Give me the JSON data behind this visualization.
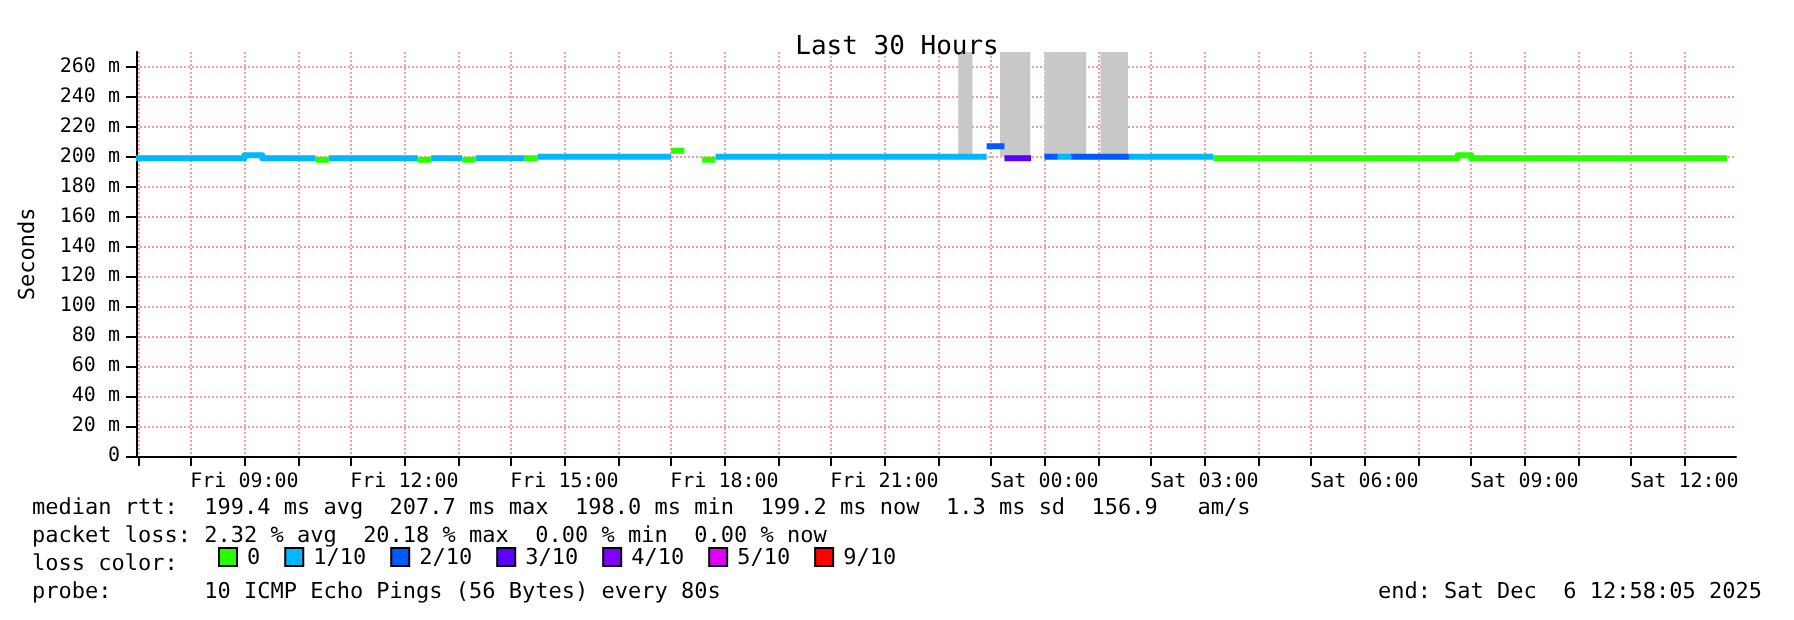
{
  "chart_data": {
    "type": "step",
    "title": "Last 30 Hours",
    "ylabel": "Seconds",
    "legend_title": "loss color:",
    "legend": "bottom left",
    "grid": true,
    "marker": "none",
    "line_style": "solid",
    "xlim": [
      "2025-12-05T06:58",
      "2025-12-06T12:58"
    ],
    "xticks": [
      {
        "value": "2025-12-05T07:00",
        "label": null
      },
      {
        "value": "2025-12-05T08:00",
        "label": null
      },
      {
        "value": "2025-12-05T09:00",
        "label": "Fri 09:00"
      },
      {
        "value": "2025-12-05T10:00",
        "label": null
      },
      {
        "value": "2025-12-05T11:00",
        "label": null
      },
      {
        "value": "2025-12-05T12:00",
        "label": "Fri 12:00"
      },
      {
        "value": "2025-12-05T13:00",
        "label": null
      },
      {
        "value": "2025-12-05T14:00",
        "label": null
      },
      {
        "value": "2025-12-05T15:00",
        "label": "Fri 15:00"
      },
      {
        "value": "2025-12-05T16:00",
        "label": null
      },
      {
        "value": "2025-12-05T17:00",
        "label": null
      },
      {
        "value": "2025-12-05T18:00",
        "label": "Fri 18:00"
      },
      {
        "value": "2025-12-05T19:00",
        "label": null
      },
      {
        "value": "2025-12-05T20:00",
        "label": null
      },
      {
        "value": "2025-12-05T21:00",
        "label": "Fri 21:00"
      },
      {
        "value": "2025-12-05T22:00",
        "label": null
      },
      {
        "value": "2025-12-05T23:00",
        "label": null
      },
      {
        "value": "2025-12-06T00:00",
        "label": "Sat 00:00"
      },
      {
        "value": "2025-12-06T01:00",
        "label": null
      },
      {
        "value": "2025-12-06T02:00",
        "label": null
      },
      {
        "value": "2025-12-06T03:00",
        "label": "Sat 03:00"
      },
      {
        "value": "2025-12-06T04:00",
        "label": null
      },
      {
        "value": "2025-12-06T05:00",
        "label": null
      },
      {
        "value": "2025-12-06T06:00",
        "label": "Sat 06:00"
      },
      {
        "value": "2025-12-06T07:00",
        "label": null
      },
      {
        "value": "2025-12-06T08:00",
        "label": null
      },
      {
        "value": "2025-12-06T09:00",
        "label": "Sat 09:00"
      },
      {
        "value": "2025-12-06T10:00",
        "label": null
      },
      {
        "value": "2025-12-06T11:00",
        "label": null
      },
      {
        "value": "2025-12-06T12:00",
        "label": "Sat 12:00"
      }
    ],
    "ylim": [
      0,
      270
    ],
    "yticks": [
      0,
      {
        "value": 20,
        "label": "20 m"
      },
      {
        "value": 40,
        "label": "40 m"
      },
      {
        "value": 60,
        "label": "60 m"
      },
      {
        "value": 80,
        "label": "80 m"
      },
      {
        "value": 100,
        "label": "100 m"
      },
      {
        "value": 120,
        "label": "120 m"
      },
      {
        "value": 140,
        "label": "140 m"
      },
      {
        "value": 160,
        "label": "160 m"
      },
      {
        "value": 180,
        "label": "180 m"
      },
      {
        "value": 200,
        "label": "200 m"
      },
      {
        "value": 220,
        "label": "220 m"
      },
      {
        "value": 240,
        "label": "240 m"
      },
      {
        "value": 260,
        "label": "260 m"
      }
    ],
    "series": [
      {
        "type": "area",
        "color": "#c8c8c8",
        "x": [
          "2025-12-05T22:23",
          "2025-12-05T22:39",
          "2025-12-05T22:45",
          "2025-12-05T23:10",
          "2025-12-05T23:44",
          "2025-12-05T23:50",
          "2025-12-06T00:00",
          "2025-12-06T00:47",
          "2025-12-06T00:55",
          "2025-12-06T01:03",
          "2025-12-06T01:34"
        ],
        "lower": [
          200,
          200,
          null,
          200,
          200,
          null,
          200,
          200,
          null,
          200,
          200
        ],
        "upper": [
          270,
          270,
          null,
          270,
          270,
          null,
          270,
          270,
          null,
          270,
          270
        ],
        "values": [
          null,
          null,
          null,
          null,
          null,
          null,
          null,
          null,
          null,
          null,
          null
        ]
      },
      {
        "name": "0",
        "color": "#26ff00",
        "x": [
          "2025-12-05T10:20",
          "2025-12-05T10:35",
          "2025-12-05T10:40",
          "2025-12-05T12:15",
          "2025-12-05T12:30",
          "2025-12-05T12:35",
          "2025-12-05T13:05",
          "2025-12-05T13:20",
          "2025-12-05T13:25",
          "2025-12-05T14:15",
          "2025-12-05T14:30",
          "2025-12-05T14:35",
          "2025-12-05T17:00",
          "2025-12-05T17:15",
          "2025-12-05T17:20",
          "2025-12-05T17:35",
          "2025-12-05T17:50",
          "2025-12-05T17:55",
          "2025-12-06T03:10",
          "2025-12-06T07:45",
          "2025-12-06T08:00",
          "2025-12-06T12:48"
        ],
        "values": [
          198,
          198,
          null,
          198,
          198,
          null,
          198,
          198,
          null,
          199,
          199,
          null,
          204,
          204,
          null,
          198,
          198,
          null,
          199,
          201,
          199,
          199
        ]
      },
      {
        "name": "1/10",
        "color": "#00b8ff",
        "x": [
          "2025-12-05T06:58",
          "2025-12-05T09:00",
          "2025-12-05T09:20",
          "2025-12-05T10:20",
          "2025-12-05T10:25",
          "2025-12-05T10:35",
          "2025-12-05T12:15",
          "2025-12-05T12:20",
          "2025-12-05T12:30",
          "2025-12-05T13:05",
          "2025-12-05T13:10",
          "2025-12-05T13:20",
          "2025-12-05T14:15",
          "2025-12-05T14:20",
          "2025-12-05T14:30",
          "2025-12-05T17:00",
          "2025-12-05T17:05",
          "2025-12-05T17:50",
          "2025-12-05T22:55",
          "2025-12-05T23:00",
          "2025-12-06T00:15",
          "2025-12-06T00:30",
          "2025-12-06T00:35",
          "2025-12-06T01:35",
          "2025-12-06T03:10"
        ],
        "values": [
          199,
          201,
          199,
          199,
          null,
          199,
          199,
          null,
          199,
          199,
          null,
          199,
          199,
          null,
          200,
          200,
          null,
          200,
          200,
          null,
          200,
          200,
          null,
          200,
          200
        ]
      },
      {
        "name": "2/10",
        "color": "#0059ff",
        "x": [
          "2025-12-05T22:55",
          "2025-12-05T23:15",
          "2025-12-05T23:20",
          "2025-12-06T00:00",
          "2025-12-06T00:15",
          "2025-12-06T00:20",
          "2025-12-06T00:30",
          "2025-12-06T01:35"
        ],
        "values": [
          207,
          207,
          null,
          200,
          200,
          null,
          200,
          200
        ]
      },
      {
        "name": "3/10",
        "color": "#5e00ff",
        "x": [
          "2025-12-05T23:15",
          "2025-12-05T23:45"
        ],
        "values": [
          199,
          199
        ]
      },
      {
        "name": "4/10",
        "color": "#7e00ff"
      },
      {
        "name": "5/10",
        "color": "#dd00ff"
      },
      {
        "name": "9/10",
        "color": "#ff0000"
      }
    ],
    "annotations": [
      "median rtt:  199.4 ms avg  207.7 ms max  198.0 ms min  199.2 ms now  1.3 ms sd  156.9   am/s",
      "packet loss: 2.32 % avg  20.18 % max  0.00 % min  0.00 % now",
      "probe:       10 ICMP Echo Pings (56 Bytes) every 80s",
      "end: Sat Dec  6 12:58:05 2025"
    ]
  }
}
